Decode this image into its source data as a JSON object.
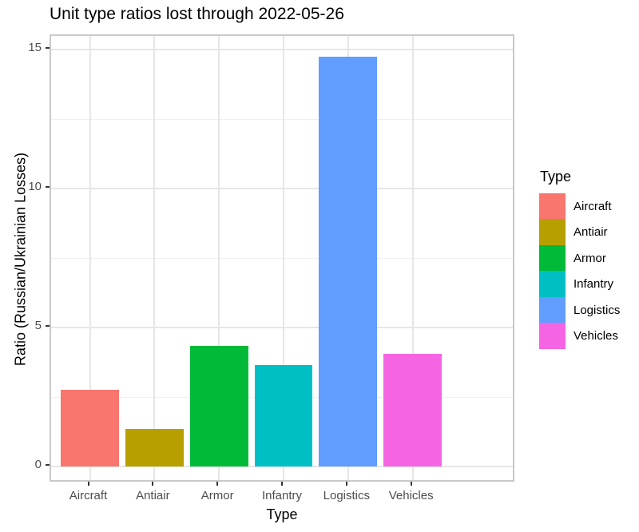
{
  "chart_data": {
    "type": "bar",
    "title": "Unit type ratios lost through 2022-05-26",
    "xlabel": "Type",
    "ylabel": "Ratio (Russian/Ukrainian Losses)",
    "categories": [
      "Aircraft",
      "Antiair",
      "Armor",
      "Infantry",
      "Logistics",
      "Vehicles"
    ],
    "values": [
      2.75,
      1.35,
      4.35,
      3.65,
      14.75,
      4.05
    ],
    "bar_colors": [
      "#F8766D",
      "#B79F00",
      "#00BA38",
      "#00BFC4",
      "#619CFF",
      "#F564E2"
    ],
    "ylim": [
      0,
      15
    ],
    "yticks": [
      0,
      5,
      10,
      15
    ],
    "minor_gridlines": [
      2.5,
      7.5,
      12.5
    ],
    "grid": true,
    "legend": {
      "title": "Type",
      "position": "right",
      "entries": [
        {
          "label": "Aircraft",
          "color": "#F8766D"
        },
        {
          "label": "Antiair",
          "color": "#B79F00"
        },
        {
          "label": "Armor",
          "color": "#00BA38"
        },
        {
          "label": "Infantry",
          "color": "#00BFC4"
        },
        {
          "label": "Logistics",
          "color": "#619CFF"
        },
        {
          "label": "Vehicles",
          "color": "#F564E2"
        }
      ]
    }
  }
}
